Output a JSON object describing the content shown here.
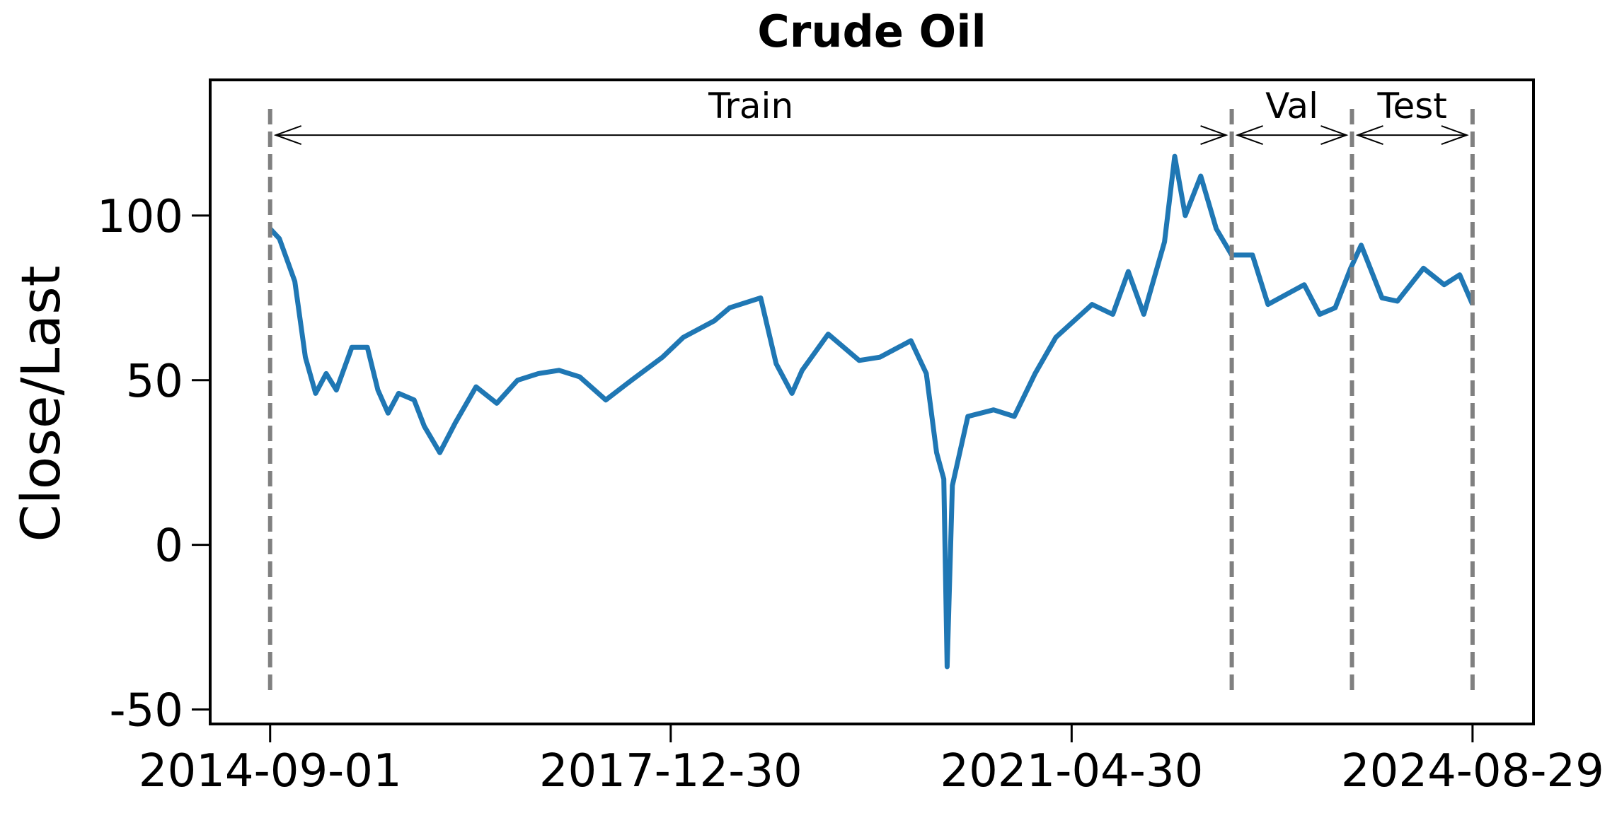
{
  "chart_data": {
    "type": "line",
    "title": "Crude Oil",
    "ylabel": "Close/Last",
    "x": [
      "2014-09-01",
      "2014-09-29",
      "2014-11-15",
      "2014-12-17",
      "2015-01-17",
      "2015-02-18",
      "2015-03-21",
      "2015-05-07",
      "2015-06-23",
      "2015-07-25",
      "2015-08-25",
      "2015-09-26",
      "2015-11-12",
      "2015-12-13",
      "2016-01-29",
      "2016-03-16",
      "2016-05-18",
      "2016-07-20",
      "2016-09-21",
      "2016-11-23",
      "2017-01-25",
      "2017-03-29",
      "2017-06-16",
      "2017-09-02",
      "2017-12-05",
      "2018-02-06",
      "2018-05-11",
      "2018-06-27",
      "2018-09-29",
      "2018-11-15",
      "2019-01-02",
      "2019-02-02",
      "2019-04-22",
      "2019-07-25",
      "2019-09-26",
      "2019-12-29",
      "2020-02-14",
      "2020-03-16",
      "2020-04-07",
      "2020-04-17",
      "2020-05-03",
      "2020-06-19",
      "2020-09-05",
      "2020-11-07",
      "2021-01-09",
      "2021-03-13",
      "2021-07-01",
      "2021-09-02",
      "2021-10-19",
      "2021-12-05",
      "2022-02-06",
      "2022-03-09",
      "2022-04-10",
      "2022-05-27",
      "2022-07-13",
      "2022-08-29",
      "2022-10-31",
      "2022-12-17",
      "2023-04-06",
      "2023-05-23",
      "2023-07-09",
      "2023-08-25",
      "2023-09-26",
      "2023-11-28",
      "2024-01-14",
      "2024-04-02",
      "2024-06-04",
      "2024-07-21",
      "2024-08-29"
    ],
    "series": [
      {
        "color": "#1f77b4",
        "values": [
          96,
          93,
          80,
          57,
          46,
          52,
          47,
          60,
          60,
          47,
          40,
          46,
          44,
          36,
          28,
          37,
          48,
          43,
          50,
          52,
          53,
          51,
          44,
          50,
          57,
          63,
          68,
          72,
          75,
          55,
          46,
          53,
          64,
          56,
          57,
          62,
          52,
          28,
          20,
          -37,
          18,
          39,
          41,
          39,
          52,
          63,
          73,
          70,
          83,
          70,
          92,
          118,
          100,
          112,
          96,
          88,
          88,
          73,
          79,
          70,
          72,
          84,
          91,
          75,
          74,
          84,
          79,
          82,
          73
        ]
      }
    ],
    "xlim": [
      "2014-03-03",
      "2025-03-02"
    ],
    "xticks": [
      "2014-09-01",
      "2017-12-30",
      "2021-04-30",
      "2024-08-29"
    ],
    "ylim": [
      -54.4,
      141.2
    ],
    "yticks": [
      -50,
      0,
      50,
      100
    ],
    "splits": [
      "2014-09-01",
      "2022-08-29",
      "2023-08-29",
      "2024-08-29"
    ],
    "split_labels": [
      "Train",
      "Val",
      "Test"
    ],
    "split_color": "#808080"
  }
}
